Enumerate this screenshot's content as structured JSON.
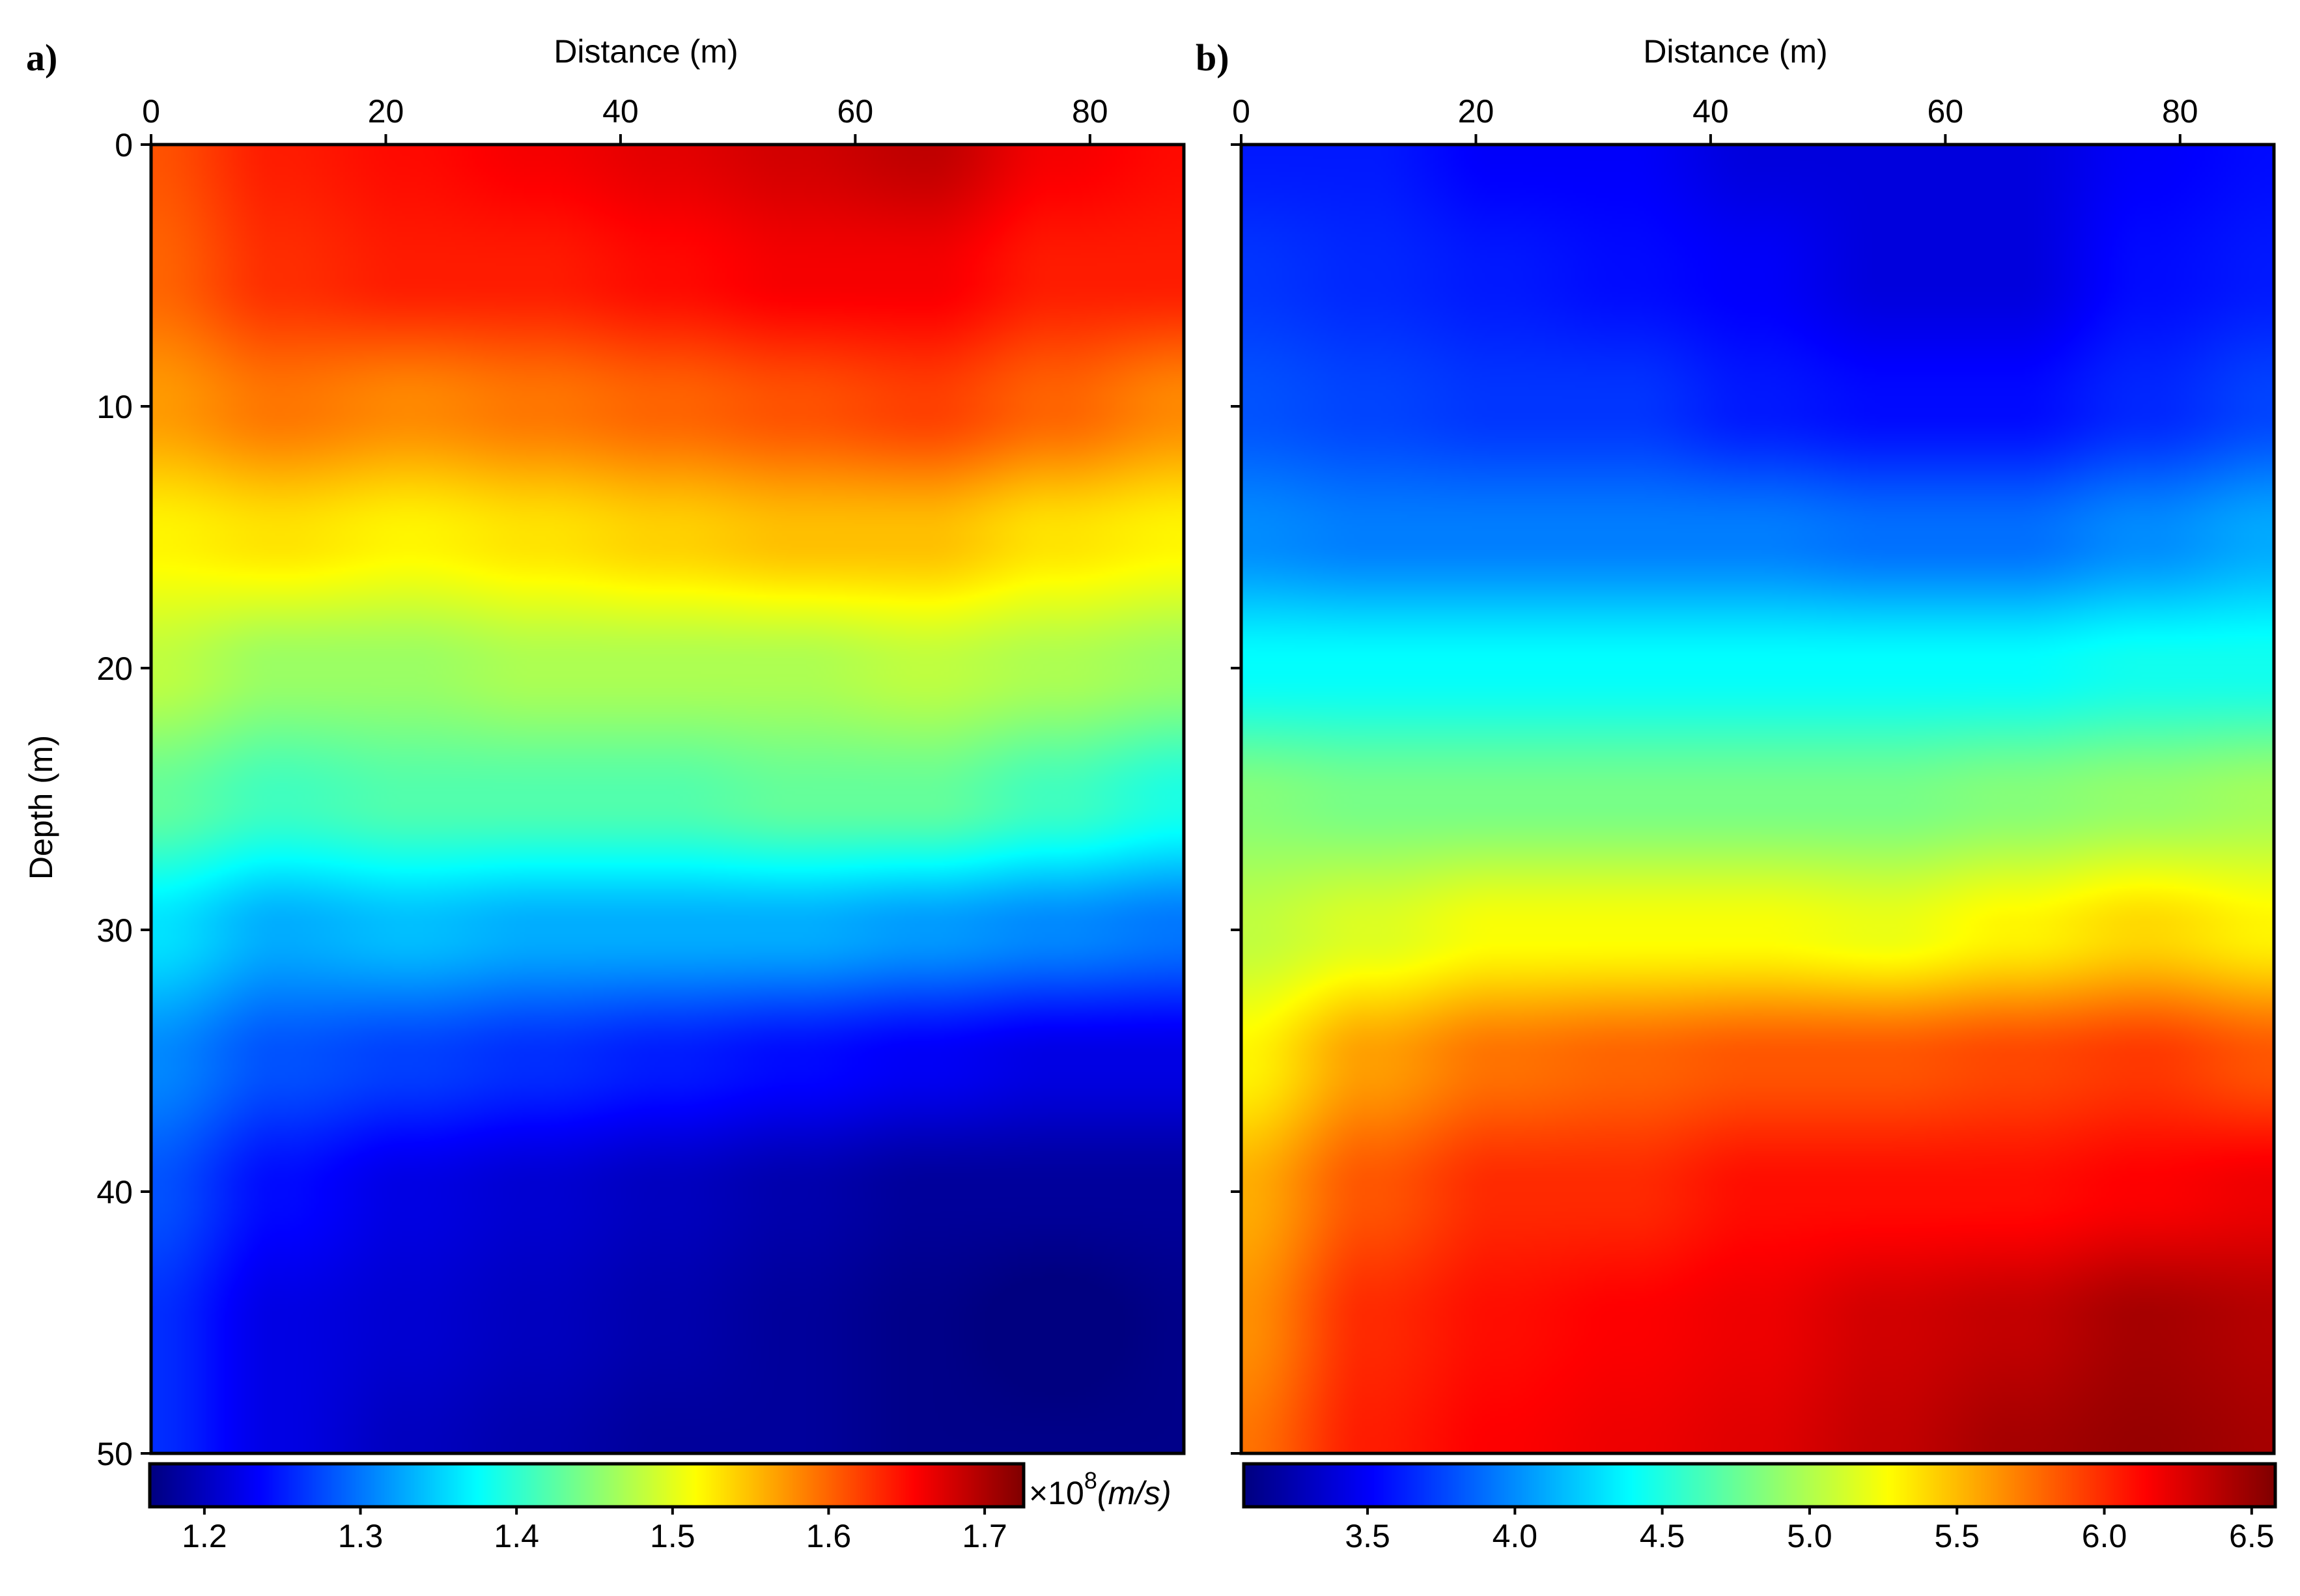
{
  "chart_data": [
    {
      "type": "heatmap",
      "panel_label": "a)",
      "xlabel": "Distance (m)",
      "ylabel": "Depth (m)",
      "xlim": [
        0,
        88
      ],
      "ylim": [
        0,
        50
      ],
      "y_inverted": true,
      "xticks": [
        0,
        20,
        40,
        60,
        80
      ],
      "xtick_labels": [
        "0",
        "20",
        "40",
        "60",
        "80"
      ],
      "yticks": [
        0,
        10,
        20,
        30,
        40,
        50
      ],
      "ytick_labels": [
        "0",
        "10",
        "20",
        "30",
        "40",
        "50"
      ],
      "x_axis_position": "top",
      "colormap": "jet",
      "color_range": [
        1.165,
        1.725
      ],
      "colorbar": {
        "position": "bottom",
        "ticks": [
          1.2,
          1.3,
          1.4,
          1.5,
          1.6,
          1.7
        ],
        "tick_labels": [
          "1.2",
          "1.3",
          "1.4",
          "1.5",
          "1.6",
          "1.7"
        ],
        "unit_prefix": "×10",
        "unit_exp": "8",
        "unit": "(m/s)"
      },
      "grid_x": [
        0,
        11,
        22,
        33,
        44,
        55,
        66,
        77,
        88
      ],
      "grid_y": [
        0,
        5,
        10,
        15,
        20,
        25,
        30,
        35,
        40,
        45,
        50
      ],
      "values": [
        [
          1.61,
          1.64,
          1.65,
          1.66,
          1.67,
          1.68,
          1.69,
          1.66,
          1.65
        ],
        [
          1.6,
          1.63,
          1.64,
          1.64,
          1.65,
          1.66,
          1.66,
          1.64,
          1.64
        ],
        [
          1.57,
          1.59,
          1.58,
          1.59,
          1.6,
          1.61,
          1.62,
          1.6,
          1.58
        ],
        [
          1.52,
          1.53,
          1.52,
          1.53,
          1.54,
          1.55,
          1.55,
          1.53,
          1.52
        ],
        [
          1.48,
          1.46,
          1.46,
          1.47,
          1.47,
          1.47,
          1.48,
          1.47,
          1.46
        ],
        [
          1.43,
          1.41,
          1.42,
          1.42,
          1.42,
          1.43,
          1.43,
          1.41,
          1.39
        ],
        [
          1.36,
          1.33,
          1.34,
          1.33,
          1.33,
          1.33,
          1.32,
          1.31,
          1.3
        ],
        [
          1.31,
          1.28,
          1.27,
          1.26,
          1.25,
          1.24,
          1.23,
          1.22,
          1.22
        ],
        [
          1.28,
          1.24,
          1.22,
          1.21,
          1.2,
          1.19,
          1.18,
          1.18,
          1.18
        ],
        [
          1.26,
          1.22,
          1.21,
          1.2,
          1.19,
          1.18,
          1.17,
          1.16,
          1.17
        ],
        [
          1.26,
          1.22,
          1.2,
          1.19,
          1.18,
          1.18,
          1.17,
          1.17,
          1.17
        ]
      ]
    },
    {
      "type": "heatmap",
      "panel_label": "b)",
      "xlabel": "Distance (m)",
      "ylabel": "",
      "xlim": [
        0,
        88
      ],
      "ylim": [
        0,
        50
      ],
      "y_inverted": true,
      "xticks": [
        0,
        20,
        40,
        60,
        80
      ],
      "xtick_labels": [
        "0",
        "20",
        "40",
        "60",
        "80"
      ],
      "yticks": [
        0,
        10,
        20,
        30,
        40,
        50
      ],
      "ytick_labels": [],
      "x_axis_position": "top",
      "colormap": "jet",
      "color_range": [
        3.08,
        6.58
      ],
      "colorbar": {
        "position": "bottom",
        "ticks": [
          3.5,
          4.0,
          4.5,
          5.0,
          5.5,
          6.0,
          6.5
        ],
        "tick_labels": [
          "3.5",
          "4.0",
          "4.5",
          "5.0",
          "5.5",
          "6.0",
          "6.5"
        ]
      },
      "grid_x": [
        0,
        11,
        22,
        33,
        44,
        55,
        66,
        77,
        88
      ],
      "grid_y": [
        0,
        5,
        10,
        15,
        20,
        25,
        30,
        35,
        40,
        45,
        50
      ],
      "values": [
        [
          3.6,
          3.6,
          3.5,
          3.5,
          3.4,
          3.4,
          3.4,
          3.5,
          3.55
        ],
        [
          3.7,
          3.65,
          3.6,
          3.55,
          3.5,
          3.4,
          3.4,
          3.55,
          3.6
        ],
        [
          3.8,
          3.75,
          3.7,
          3.7,
          3.6,
          3.55,
          3.55,
          3.65,
          3.75
        ],
        [
          4.0,
          3.95,
          3.95,
          3.95,
          3.95,
          3.9,
          3.9,
          4.0,
          4.1
        ],
        [
          4.4,
          4.4,
          4.4,
          4.4,
          4.4,
          4.4,
          4.4,
          4.45,
          4.45
        ],
        [
          4.85,
          4.8,
          4.8,
          4.8,
          4.8,
          4.8,
          4.85,
          4.9,
          4.95
        ],
        [
          5.05,
          5.15,
          5.25,
          5.25,
          5.25,
          5.2,
          5.3,
          5.4,
          5.3
        ],
        [
          5.3,
          5.6,
          5.75,
          5.8,
          5.85,
          5.85,
          5.9,
          5.95,
          5.85
        ],
        [
          5.55,
          5.85,
          6.0,
          6.0,
          6.1,
          6.1,
          6.1,
          6.15,
          6.2
        ],
        [
          5.65,
          6.0,
          6.1,
          6.15,
          6.2,
          6.3,
          6.35,
          6.45,
          6.4
        ],
        [
          5.75,
          6.05,
          6.15,
          6.2,
          6.25,
          6.35,
          6.45,
          6.5,
          6.45
        ]
      ]
    }
  ]
}
